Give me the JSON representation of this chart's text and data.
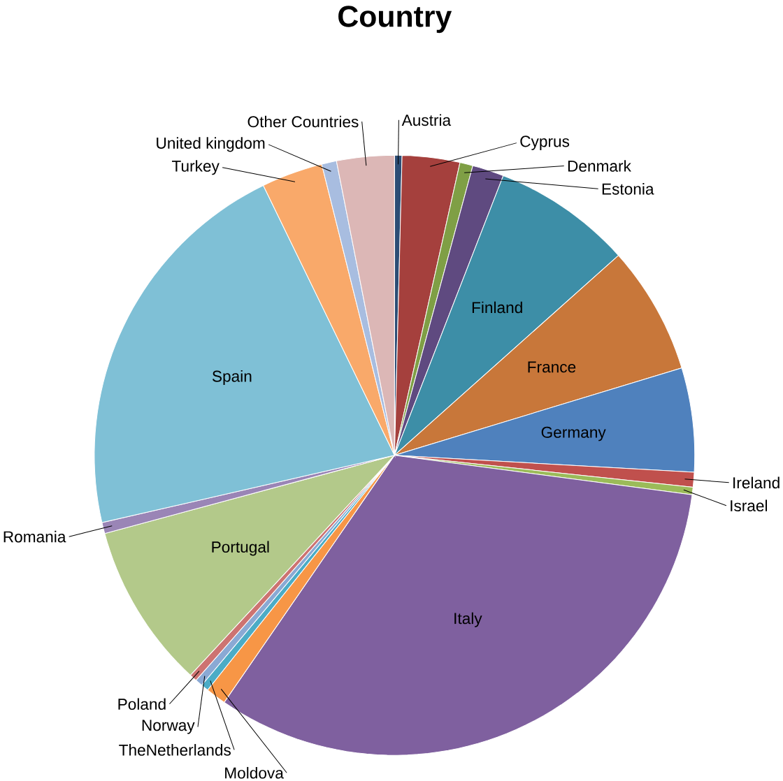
{
  "chart_data": {
    "type": "pie",
    "title": "Country",
    "categories": [
      "Austria",
      "Cyprus",
      "Denmark",
      "Estonia",
      "Finland",
      "France",
      "Germany",
      "Ireland",
      "Israel",
      "Italy",
      "Moldova",
      "TheNetherlands",
      "Norway",
      "Poland",
      "Portugal",
      "Romania",
      "Spain",
      "Turkey",
      "United kingdom",
      "Other Countries"
    ],
    "values": [
      0.4,
      3.1,
      0.7,
      1.7,
      7.5,
      6.9,
      5.6,
      0.8,
      0.4,
      32.5,
      1.1,
      0.4,
      0.4,
      0.4,
      8.9,
      0.6,
      21.4,
      3.3,
      0.8,
      3.1
    ],
    "colors": [
      "#2c4d75",
      "#a5403d",
      "#7f9f45",
      "#5f4a80",
      "#3d8ea7",
      "#c8773a",
      "#4f81bd",
      "#c0504d",
      "#9bbb59",
      "#7f609f",
      "#f79646",
      "#4bacc6",
      "#8aa9d4",
      "#cd7371",
      "#b3c98a",
      "#9a85b6",
      "#7fc0d6",
      "#f9a96a",
      "#a8bde0",
      "#dcb7b6"
    ]
  }
}
